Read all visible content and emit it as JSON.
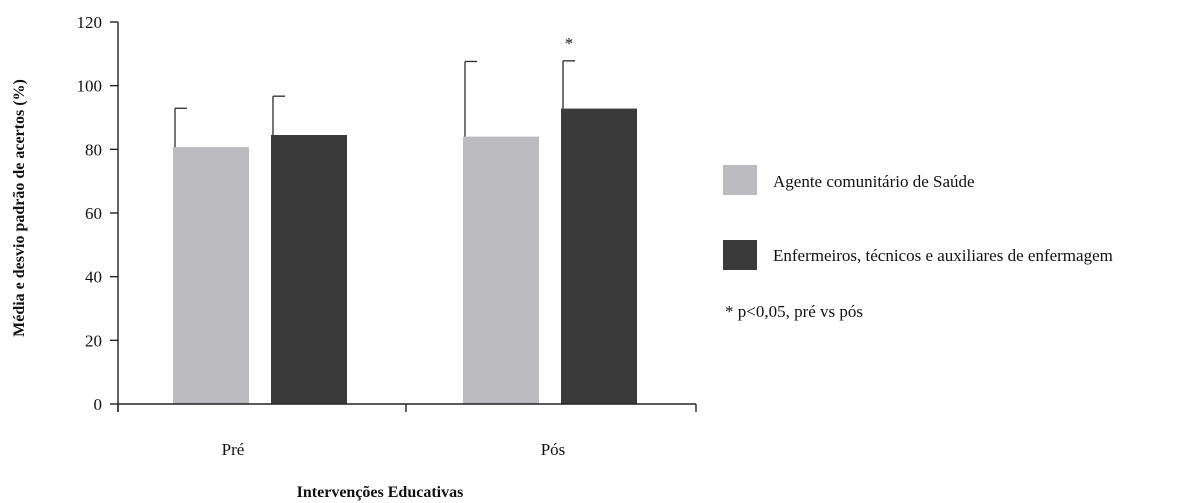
{
  "chart_data": {
    "type": "bar",
    "categories": [
      "Pré",
      "Pós"
    ],
    "series": [
      {
        "name": "Agente comunitário de Saúde",
        "color": "#bcbcc0",
        "values": [
          80.7,
          84.0
        ],
        "sd": [
          12.2,
          23.6
        ]
      },
      {
        "name": "Enfermeiros, técnicos e auxiliares de enfermagem",
        "color": "#3a3a3a",
        "values": [
          84.5,
          92.8
        ],
        "sd": [
          12.2,
          15.0
        ]
      }
    ],
    "xlabel": "Intervenções Educativas",
    "ylabel": "Média e desvio padrão de acertos (%)",
    "ylim": [
      0,
      120
    ],
    "yticks": [
      "0",
      "20",
      "40",
      "60",
      "80",
      "100",
      "120"
    ],
    "significance": {
      "category": "Pós",
      "series": 1,
      "marker": "*"
    },
    "note": "* p<0,05, pré vs pós",
    "legend_position": "right",
    "grid": false
  }
}
